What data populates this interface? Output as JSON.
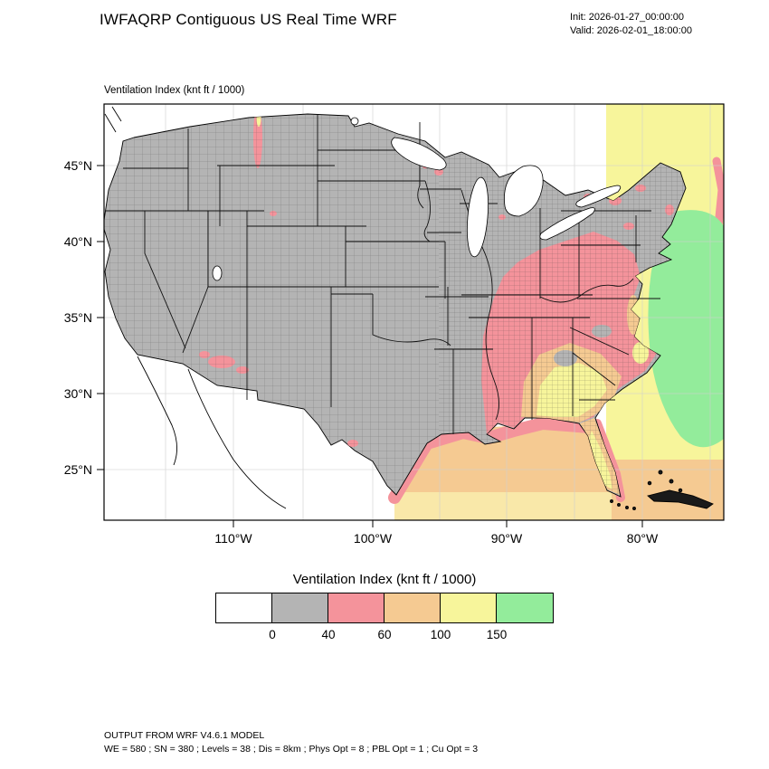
{
  "header": {
    "title": "IWFAQRP Contiguous US Real Time WRF",
    "init": "Init: 2026-01-27_00:00:00",
    "valid": "Valid: 2026-02-01_18:00:00"
  },
  "map": {
    "field_label": "Ventilation Index   (knt ft / 1000)",
    "lat_ticks": [
      "45°N",
      "40°N",
      "35°N",
      "30°N",
      "25°N"
    ],
    "lon_ticks": [
      "110°W",
      "100°W",
      "90°W",
      "80°W"
    ],
    "regions": [
      {
        "bin": "0-40 (gray)",
        "where": "Most of the western, central and northern CONUS land area"
      },
      {
        "bin": "40-60 (pink)",
        "where": "Mississippi Valley, Tennessee, Kentucky, Virginia, Carolinas, Gulf coastal fringe; small spots in Arizona, Montana, Minnesota, south Texas, Northeast"
      },
      {
        "bin": "60-100 (tan)",
        "where": "Gulf of Mexico waters and lower Southeast coastal plain"
      },
      {
        "bin": "100-150 (yellow)",
        "where": "Southern Alabama/Georgia, Florida peninsula, Atlantic waters near the coast"
      },
      {
        "bin": "> 150 (green)",
        "where": "Open Atlantic well offshore of the Southeast coast"
      }
    ]
  },
  "legend": {
    "title": "Ventilation Index  (knt ft / 1000)",
    "tick_labels": [
      "0",
      "40",
      "60",
      "100",
      "150"
    ],
    "colors": [
      "#FFFFFF",
      "#B4B4B4",
      "#F4939B",
      "#F5CA92",
      "#F7F59B",
      "#93EC9B"
    ]
  },
  "footer": {
    "line1": "OUTPUT FROM WRF V4.6.1 MODEL",
    "line2": "WE = 580 ; SN = 380 ; Levels = 38 ; Dis = 8km ; Phys Opt = 8 ; PBL Opt = 1 ; Cu Opt = 3"
  }
}
